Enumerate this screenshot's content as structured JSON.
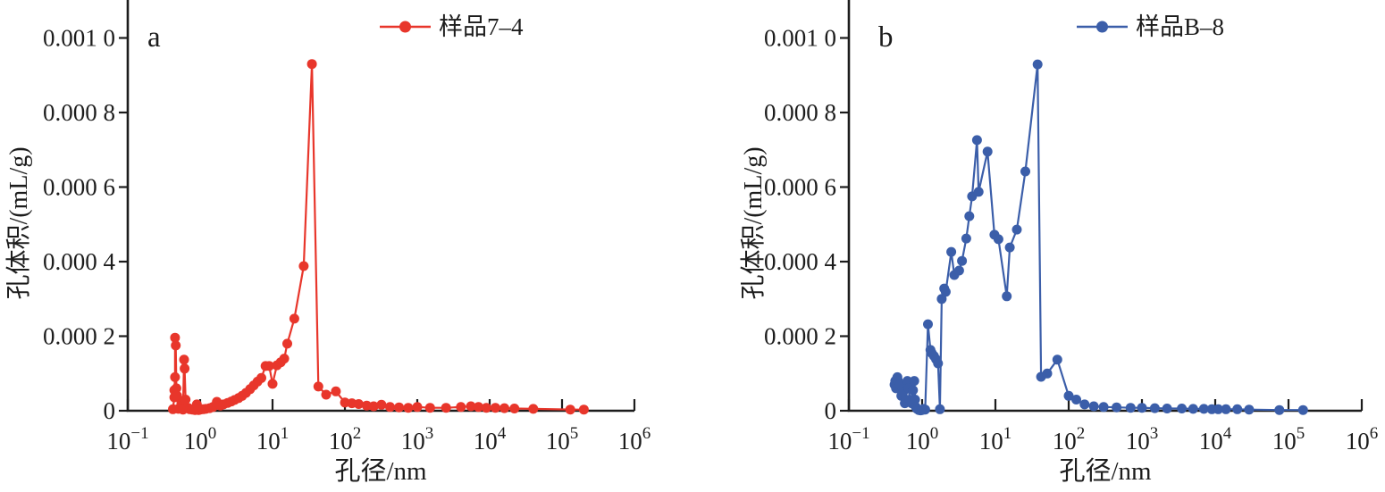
{
  "figure": {
    "xlabel": "孔径/nm",
    "ylabel": "孔体积/(mL/g)"
  },
  "chart_data": [
    {
      "type": "line",
      "panel_label": "a",
      "legend": "样品7–4",
      "color": "#e8362b",
      "xscale": "log",
      "xlabel": "孔径/nm",
      "ylabel": "孔体积/(mL/g)",
      "xlim": [
        0.1,
        1000000
      ],
      "ylim": [
        0,
        0.001
      ],
      "x_tick_exponents": [
        -1,
        0,
        1,
        2,
        3,
        4,
        5,
        6
      ],
      "y_ticks": [
        0,
        0.0002,
        0.0004,
        0.0006,
        0.0008,
        0.001
      ],
      "y_tick_labels": [
        "0",
        "0.000 2",
        "0.000 4",
        "0.000 6",
        "0.000 8",
        "0.001 0"
      ],
      "legend_position": "top",
      "grid": false,
      "x": [
        0.42,
        0.44,
        0.44,
        0.45,
        0.45,
        0.46,
        0.47,
        0.48,
        0.5,
        0.55,
        0.58,
        0.6,
        0.61,
        0.63,
        0.68,
        0.72,
        0.78,
        0.85,
        0.9,
        0.95,
        1.0,
        1.1,
        1.2,
        1.35,
        1.5,
        1.7,
        1.9,
        2.1,
        2.4,
        2.7,
        3.0,
        3.4,
        3.8,
        4.3,
        4.9,
        5.5,
        6.2,
        7.0,
        8.0,
        9.0,
        10,
        11.5,
        13,
        14.5,
        16,
        20,
        27,
        35,
        43,
        55,
        75,
        100,
        125,
        155,
        200,
        250,
        320,
        420,
        560,
        750,
        1000,
        1500,
        2500,
        4000,
        5500,
        7000,
        9000,
        12000,
        16000,
        22000,
        40000,
        130000,
        200000
      ],
      "y": [
        4e-06,
        3.6e-05,
        5.5e-05,
        9e-05,
        0.000196,
        0.000175,
        6e-05,
        4e-05,
        5e-06,
        2e-05,
        3e-06,
        0.000137,
        0.000113,
        3e-05,
        8e-06,
        4e-06,
        3e-06,
        2e-06,
        1.7e-05,
        2e-06,
        3e-06,
        4e-06,
        5e-06,
        7e-06,
        1e-05,
        2.4e-05,
        1.4e-05,
        1.7e-05,
        2.1e-05,
        2.5e-05,
        2.9e-05,
        3.4e-05,
        4e-05,
        4.8e-05,
        5.8e-05,
        6.8e-05,
        7.8e-05,
        8.8e-05,
        0.00012,
        0.00012,
        7.2e-05,
        0.000122,
        0.00013,
        0.00014,
        0.00018,
        0.000247,
        0.000388,
        0.00093,
        6.5e-05,
        4.3e-05,
        5.2e-05,
        2.2e-05,
        2e-05,
        1.8e-05,
        1.4e-05,
        1.2e-05,
        1.6e-05,
        1e-05,
        9e-06,
        8e-06,
        1e-05,
        8e-06,
        8e-06,
        1e-05,
        1.2e-05,
        1e-05,
        8e-06,
        8e-06,
        7e-06,
        6e-06,
        5e-06,
        3e-06,
        3e-06
      ]
    },
    {
      "type": "line",
      "panel_label": "b",
      "legend": "样品B–8",
      "color": "#3b5ea9",
      "xscale": "log",
      "xlabel": "孔径/nm",
      "ylabel": "孔体积/(mL/g)",
      "xlim": [
        0.1,
        1000000
      ],
      "ylim": [
        0,
        0.001
      ],
      "x_tick_exponents": [
        -1,
        0,
        1,
        2,
        3,
        4,
        5,
        6
      ],
      "y_ticks": [
        0,
        0.0002,
        0.0004,
        0.0006,
        0.0008,
        0.001
      ],
      "y_tick_labels": [
        "0",
        "0.000 2",
        "0.000 4",
        "0.000 6",
        "0.000 8",
        "0.001 0"
      ],
      "legend_position": "top",
      "grid": false,
      "x": [
        0.42,
        0.43,
        0.44,
        0.45,
        0.46,
        0.47,
        0.5,
        0.52,
        0.55,
        0.58,
        0.6,
        0.63,
        0.65,
        0.68,
        0.72,
        0.75,
        0.78,
        0.8,
        0.82,
        0.85,
        0.9,
        0.95,
        1.0,
        1.05,
        1.1,
        1.2,
        1.3,
        1.35,
        1.45,
        1.55,
        1.65,
        1.75,
        1.85,
        2.0,
        2.1,
        2.5,
        2.75,
        3.2,
        3.5,
        4.0,
        4.4,
        4.8,
        5.6,
        5.9,
        7.8,
        9.7,
        11,
        14.3,
        15.7,
        19.6,
        25.6,
        37.6,
        42,
        51,
        70,
        100,
        127,
        165,
        220,
        300,
        450,
        700,
        1000,
        1500,
        2200,
        3500,
        5000,
        7000,
        9000,
        11000,
        14000,
        20000,
        29000,
        75000,
        158000
      ],
      "y": [
        7e-05,
        8e-05,
        6e-05,
        8.5e-05,
        9e-05,
        8e-05,
        7e-05,
        4e-05,
        5e-05,
        2e-05,
        3e-05,
        8e-05,
        6e-05,
        3e-05,
        2e-05,
        5.5e-05,
        8e-05,
        3e-05,
        1e-05,
        5e-06,
        2e-06,
        1e-06,
        2e-06,
        5e-06,
        3e-06,
        0.000232,
        0.000163,
        0.000155,
        0.000147,
        0.000138,
        0.000127,
        4e-06,
        0.0003,
        0.000328,
        0.000319,
        0.000426,
        0.000364,
        0.000376,
        0.000402,
        0.000462,
        0.000522,
        0.000575,
        0.000726,
        0.000587,
        0.000695,
        0.000472,
        0.00046,
        0.000307,
        0.000438,
        0.000486,
        0.000642,
        0.000929,
        9.1e-05,
        0.0001,
        0.000137,
        4e-05,
        3e-05,
        1.7e-05,
        1.2e-05,
        1e-05,
        9e-06,
        8e-06,
        8e-06,
        7e-06,
        6e-06,
        6e-06,
        5e-06,
        5e-06,
        4e-06,
        4e-06,
        4e-06,
        4e-06,
        3e-06,
        2e-06,
        2e-06
      ]
    }
  ]
}
